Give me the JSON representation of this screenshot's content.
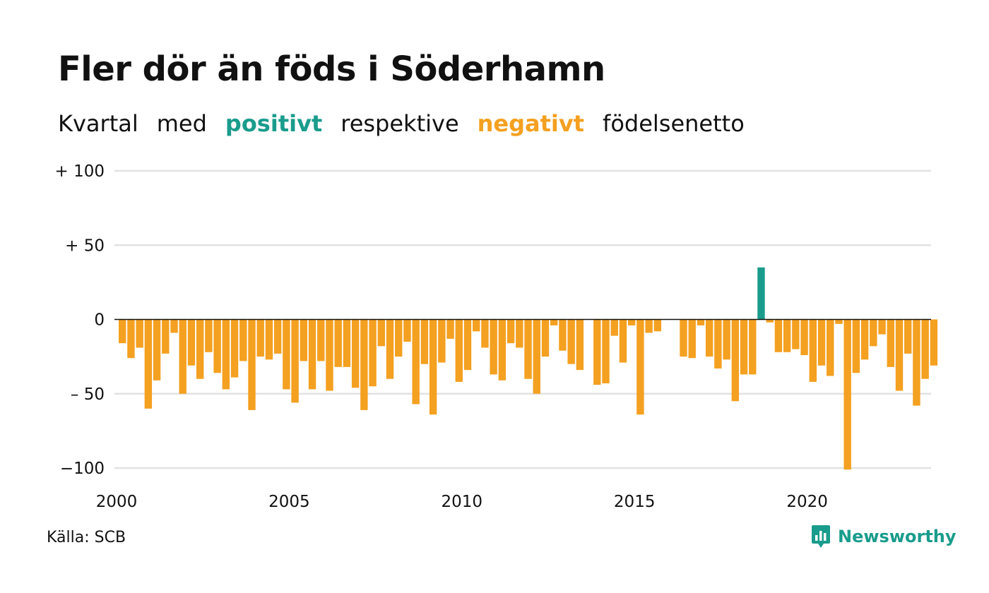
{
  "title": "Fler dör än föds i Söderhamn",
  "subtitle": {
    "part1": "Kvartal",
    "part2": "med",
    "positive": "positivt",
    "part3": "respektive",
    "negative": "negativt",
    "part4": "födelsenetto"
  },
  "source": "Källa: SCB",
  "brand": "Newsworthy",
  "colors": {
    "positive": "#1a9c8c",
    "negative": "#f4a020",
    "grid": "#e2e2e2",
    "zero": "#111111"
  },
  "chart_data": {
    "type": "bar",
    "ylim": [
      -100,
      100
    ],
    "y_ticks": [
      100,
      50,
      0,
      -50,
      -100
    ],
    "y_tick_labels": [
      "+ 100",
      "+  50",
      "0",
      "– 50",
      "−100"
    ],
    "x_ticks": [
      2000,
      2005,
      2010,
      2015,
      2020
    ],
    "x_tick_labels": [
      "2000",
      "2005",
      "2010",
      "2015",
      "2020"
    ],
    "grid": true,
    "start_year": 2000,
    "values": [
      -16,
      -26,
      -19,
      -60,
      -41,
      -23,
      -9,
      -50,
      -31,
      -40,
      -22,
      -36,
      -47,
      -39,
      -28,
      -61,
      -25,
      -27,
      -23,
      -47,
      -56,
      -28,
      -47,
      -28,
      -48,
      -32,
      -32,
      -46,
      -61,
      -45,
      -18,
      -40,
      -25,
      -15,
      -57,
      -30,
      -64,
      -29,
      -13,
      -42,
      -34,
      -8,
      -19,
      -37,
      -41,
      -16,
      -19,
      -40,
      -50,
      -25,
      -4,
      -21,
      -30,
      -34,
      0,
      -44,
      -43,
      -11,
      -29,
      -4,
      -64,
      -9,
      -8,
      0,
      0,
      -25,
      -26,
      -4,
      -25,
      -33,
      -27,
      -55,
      -37,
      -37,
      35,
      -2,
      -22,
      -22,
      -20,
      -24,
      -42,
      -31,
      -38,
      -3,
      -101,
      -36,
      -27,
      -18,
      -10,
      -32,
      -48,
      -23,
      -58,
      -40,
      -31
    ]
  }
}
